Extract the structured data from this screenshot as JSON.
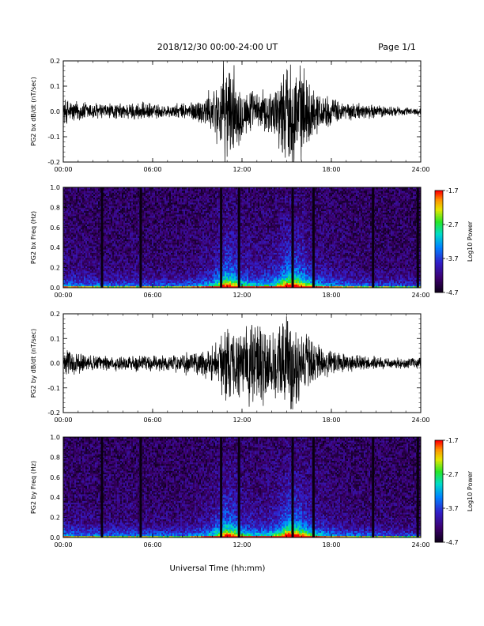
{
  "header": {
    "title": "2018/12/30  00:00-24:00 UT",
    "page": "Page 1/1"
  },
  "footer": {
    "xlabel": "Universal Time (hh:mm)"
  },
  "colorbar": {
    "label": "Log10 Power",
    "ticks": [
      "-1.7",
      "-2.7",
      "-3.7",
      "-4.7"
    ],
    "range": [
      -4.7,
      -1.7
    ]
  },
  "chart_data": [
    {
      "type": "line",
      "ylabel": "PG2 bx dB/dt (nT/sec)",
      "xlim": [
        0,
        24
      ],
      "ylim": [
        -0.2,
        0.2
      ],
      "xticks": [
        "00:00",
        "06:00",
        "12:00",
        "18:00",
        "24:00"
      ],
      "yticks": [
        "0.2",
        "0.1",
        "0.0",
        "-0.1",
        "-0.2"
      ],
      "envelope": {
        "x_hours": [
          0,
          1,
          2,
          3,
          4,
          5,
          6,
          7,
          8,
          9,
          10,
          10.5,
          11,
          11.5,
          12,
          13,
          14,
          14.5,
          15,
          15.5,
          16,
          16.5,
          17,
          18,
          19,
          20,
          21,
          22,
          23,
          24
        ],
        "amplitude": [
          0.05,
          0.04,
          0.035,
          0.03,
          0.03,
          0.035,
          0.03,
          0.025,
          0.03,
          0.045,
          0.08,
          0.14,
          0.2,
          0.16,
          0.1,
          0.07,
          0.09,
          0.13,
          0.2,
          0.2,
          0.17,
          0.12,
          0.08,
          0.05,
          0.035,
          0.03,
          0.025,
          0.02,
          0.015,
          0.015
        ]
      }
    },
    {
      "type": "heatmap",
      "ylabel": "PG2 bx Freq (Hz)",
      "xlim": [
        0,
        24
      ],
      "ylim": [
        0.0,
        1.0
      ],
      "xticks": [
        "00:00",
        "06:00",
        "12:00",
        "18:00",
        "24:00"
      ],
      "yticks": [
        "1.0",
        "0.8",
        "0.6",
        "0.4",
        "0.2",
        "0.0"
      ],
      "dark_columns_hours": [
        2.6,
        5.2,
        10.6,
        11.8,
        15.4,
        16.8,
        20.8,
        23.8
      ]
    },
    {
      "type": "line",
      "ylabel": "PG2 by dB/dt (nT/sec)",
      "xlim": [
        0,
        24
      ],
      "ylim": [
        -0.2,
        0.2
      ],
      "xticks": [
        "00:00",
        "06:00",
        "12:00",
        "18:00",
        "24:00"
      ],
      "yticks": [
        "0.2",
        "0.1",
        "0.0",
        "-0.1",
        "-0.2"
      ],
      "envelope": {
        "x_hours": [
          0,
          1,
          2,
          3,
          4,
          5,
          6,
          7,
          8,
          9,
          10,
          10.5,
          11,
          11.5,
          12,
          12.5,
          13,
          13.5,
          14,
          14.5,
          15,
          15.5,
          16,
          17,
          18,
          19,
          20,
          21,
          22,
          23,
          24
        ],
        "amplitude": [
          0.05,
          0.04,
          0.03,
          0.03,
          0.03,
          0.035,
          0.03,
          0.03,
          0.04,
          0.05,
          0.07,
          0.1,
          0.15,
          0.14,
          0.12,
          0.16,
          0.2,
          0.17,
          0.13,
          0.16,
          0.2,
          0.18,
          0.13,
          0.08,
          0.05,
          0.035,
          0.03,
          0.025,
          0.02,
          0.02,
          0.02
        ]
      }
    },
    {
      "type": "heatmap",
      "ylabel": "PG2 by Freq (Hz)",
      "xlim": [
        0,
        24
      ],
      "ylim": [
        0.0,
        1.0
      ],
      "xticks": [
        "00:00",
        "06:00",
        "12:00",
        "18:00",
        "24:00"
      ],
      "yticks": [
        "1.0",
        "0.8",
        "0.6",
        "0.4",
        "0.2",
        "0.0"
      ],
      "dark_columns_hours": [
        2.6,
        5.2,
        10.6,
        11.8,
        15.4,
        16.8,
        20.8,
        23.8
      ]
    }
  ]
}
